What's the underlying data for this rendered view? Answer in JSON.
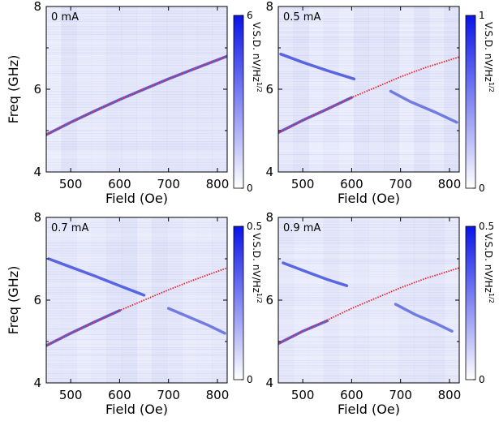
{
  "chart_data": [
    {
      "type": "heatmap",
      "label": "0 mA",
      "xlabel": "Field (Oe)",
      "ylabel": "Freq (GHz)",
      "xlim": [
        450,
        820
      ],
      "ylim": [
        4,
        8
      ],
      "xticks": [
        500,
        600,
        700,
        800
      ],
      "yticks": [
        4,
        6,
        8
      ],
      "yminor": [
        5,
        7
      ],
      "cmap": [
        "#ffffff",
        "#0a14e6"
      ],
      "colorbar": {
        "lim": [
          0,
          6
        ],
        "ticks": [
          0,
          6
        ],
        "label": "V.S.D. nV/Hz",
        "label_sup": "1/2"
      },
      "series": [
        {
          "color": "#2a3bd8",
          "style": "band",
          "x": [
            450,
            500,
            550,
            600,
            650,
            700,
            750,
            820
          ],
          "values": [
            4.9,
            5.2,
            5.48,
            5.75,
            6.0,
            6.25,
            6.48,
            6.8
          ]
        },
        {
          "color": "#e8202a",
          "style": "dotted",
          "x": [
            450,
            500,
            550,
            600,
            650,
            700,
            750,
            820
          ],
          "values": [
            4.9,
            5.2,
            5.48,
            5.75,
            6.0,
            6.25,
            6.48,
            6.8
          ]
        }
      ]
    },
    {
      "type": "heatmap",
      "label": "0.5 mA",
      "xlabel": "Field (Oe)",
      "xlim": [
        450,
        820
      ],
      "ylim": [
        4,
        8
      ],
      "xticks": [
        500,
        600,
        700,
        800
      ],
      "yticks": [
        4,
        6,
        8
      ],
      "yminor": [
        5,
        7
      ],
      "cmap": [
        "#ffffff",
        "#0a14e6"
      ],
      "colorbar": {
        "lim": [
          0,
          1
        ],
        "ticks": [
          0,
          1
        ],
        "label": "V.S.D. nV/Hz",
        "label_sup": "1/2"
      },
      "series": [
        {
          "color": "#2a3bd8",
          "style": "band",
          "x": [
            450,
            500,
            550,
            600
          ],
          "values": [
            4.95,
            5.25,
            5.52,
            5.8
          ]
        },
        {
          "color": "#2a3bd8",
          "style": "band",
          "x": [
            455,
            500,
            550,
            605
          ],
          "values": [
            6.85,
            6.65,
            6.45,
            6.25
          ]
        },
        {
          "color": "#4a58d8",
          "style": "band",
          "x": [
            680,
            720,
            770,
            815
          ],
          "values": [
            5.95,
            5.7,
            5.45,
            5.2
          ]
        },
        {
          "color": "#e8202a",
          "style": "dotted",
          "x": [
            450,
            500,
            550,
            600,
            650,
            700,
            750,
            820
          ],
          "values": [
            4.95,
            5.25,
            5.52,
            5.8,
            6.05,
            6.3,
            6.52,
            6.78
          ]
        }
      ]
    },
    {
      "type": "heatmap",
      "label": "0.7 mA",
      "xlabel": "Field (Oe)",
      "ylabel": "Freq (GHz)",
      "xlim": [
        450,
        820
      ],
      "ylim": [
        4,
        8
      ],
      "xticks": [
        500,
        600,
        700,
        800
      ],
      "yticks": [
        4,
        6,
        8
      ],
      "yminor": [
        5,
        7
      ],
      "cmap": [
        "#ffffff",
        "#0a14e6"
      ],
      "colorbar": {
        "lim": [
          0,
          0.5
        ],
        "ticks": [
          0,
          0.5
        ],
        "label": "V.S.D. nV/Hz",
        "label_sup": "1/2"
      },
      "series": [
        {
          "color": "#2a3bd8",
          "style": "band",
          "x": [
            450,
            500,
            550,
            600
          ],
          "values": [
            4.9,
            5.2,
            5.48,
            5.75
          ]
        },
        {
          "color": "#2a3bd8",
          "style": "band",
          "x": [
            455,
            500,
            550,
            600,
            650
          ],
          "values": [
            7.0,
            6.8,
            6.58,
            6.35,
            6.12
          ]
        },
        {
          "color": "#4a58d8",
          "style": "band",
          "x": [
            700,
            740,
            780,
            815
          ],
          "values": [
            5.8,
            5.6,
            5.4,
            5.2
          ]
        },
        {
          "color": "#e8202a",
          "style": "dotted",
          "x": [
            450,
            500,
            550,
            600,
            650,
            700,
            750,
            820
          ],
          "values": [
            4.9,
            5.2,
            5.48,
            5.75,
            6.0,
            6.25,
            6.48,
            6.78
          ]
        }
      ]
    },
    {
      "type": "heatmap",
      "label": "0.9 mA",
      "xlabel": "Field (Oe)",
      "xlim": [
        450,
        820
      ],
      "ylim": [
        4,
        8
      ],
      "xticks": [
        500,
        600,
        700,
        800
      ],
      "yticks": [
        4,
        6,
        8
      ],
      "yminor": [
        5,
        7
      ],
      "cmap": [
        "#ffffff",
        "#0a14e6"
      ],
      "colorbar": {
        "lim": [
          0,
          0.5
        ],
        "ticks": [
          0,
          0.5
        ],
        "label": "V.S.D. nV/Hz",
        "label_sup": "1/2"
      },
      "series": [
        {
          "color": "#2a3bd8",
          "style": "band",
          "x": [
            450,
            500,
            550
          ],
          "values": [
            4.95,
            5.25,
            5.5
          ]
        },
        {
          "color": "#2a3bd8",
          "style": "band",
          "x": [
            460,
            500,
            550,
            590
          ],
          "values": [
            6.9,
            6.72,
            6.5,
            6.35
          ]
        },
        {
          "color": "#4a58d8",
          "style": "band",
          "x": [
            690,
            730,
            770,
            805
          ],
          "values": [
            5.9,
            5.65,
            5.45,
            5.25
          ]
        },
        {
          "color": "#e8202a",
          "style": "dotted",
          "x": [
            450,
            500,
            550,
            600,
            650,
            700,
            750,
            820
          ],
          "values": [
            4.95,
            5.25,
            5.52,
            5.8,
            6.05,
            6.3,
            6.52,
            6.78
          ]
        }
      ]
    }
  ]
}
